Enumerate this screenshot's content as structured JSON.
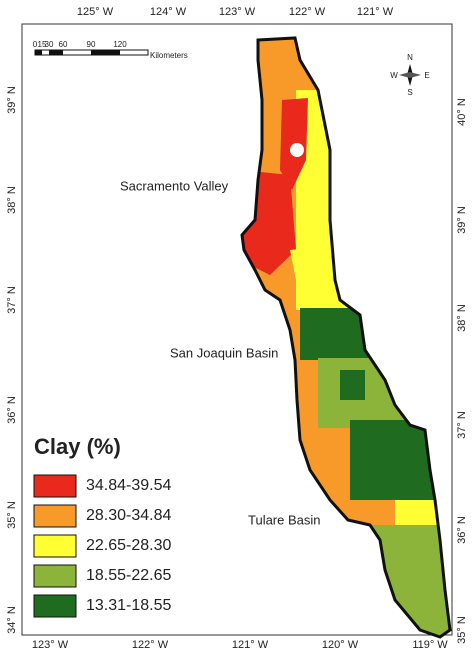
{
  "top_ticks": [
    "125° W",
    "124° W",
    "123° W",
    "122° W",
    "121° W"
  ],
  "bottom_ticks": [
    "123° W",
    "122° W",
    "121° W",
    "120° W",
    "119° W"
  ],
  "left_ticks": [
    "39° N",
    "38° N",
    "37° N",
    "36° N",
    "35° N",
    "34° N"
  ],
  "right_ticks": [
    "40° N",
    "39° N",
    "38° N",
    "37° N",
    "36° N",
    "35° N"
  ],
  "scale_bar": {
    "labels": [
      "0",
      "15",
      "30",
      "60",
      "90",
      "120"
    ],
    "unit": "Kilometers"
  },
  "north_arrow": {
    "n": "N",
    "s": "S",
    "w": "W",
    "e": "E"
  },
  "region_labels": [
    "Sacramento Valley",
    "San Joaquin Basin",
    "Tulare Basin"
  ],
  "legend": {
    "title": "Clay (%)",
    "items": [
      {
        "label": "34.84-39.54",
        "color": "#e8291c"
      },
      {
        "label": "28.30-34.84",
        "color": "#f79a2a"
      },
      {
        "label": "22.65-28.30",
        "color": "#ffff33"
      },
      {
        "label": "18.55-22.65",
        "color": "#8db43a"
      },
      {
        "label": "13.31-18.55",
        "color": "#1f6b1f"
      }
    ]
  }
}
